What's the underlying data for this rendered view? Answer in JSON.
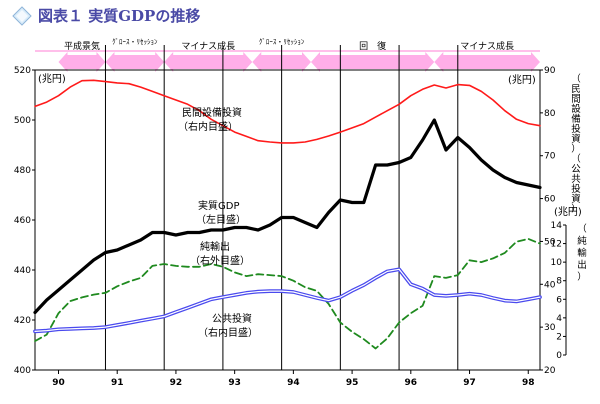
{
  "title": "図表１ 実質GDPの推移",
  "chart_data": {
    "type": "line",
    "title": "図表１ 実質GDPの推移",
    "phases": [
      {
        "label": "平成景気",
        "from": 90.0,
        "to": 90.8,
        "small": false
      },
      {
        "label": "ｸﾞﾛｰｽ・ﾘｾｯｼｮﾝ",
        "from": 90.8,
        "to": 91.8,
        "small": true
      },
      {
        "label": "マイナス成長",
        "from": 91.8,
        "to": 93.3,
        "small": false
      },
      {
        "label": "ｸﾞﾛｰｽ・ﾘｾｯｼｮﾝ",
        "from": 93.3,
        "to": 94.3,
        "small": true
      },
      {
        "label": "回　復",
        "from": 94.3,
        "to": 96.4,
        "small": false
      },
      {
        "label": "マイナス成長",
        "from": 96.4,
        "to": 98.2,
        "small": false
      }
    ],
    "x_ticks": [
      {
        "value": 90,
        "label": "90"
      },
      {
        "value": 91,
        "label": "91"
      },
      {
        "value": 92,
        "label": "92"
      },
      {
        "value": 93,
        "label": "93"
      },
      {
        "value": 94,
        "label": "94"
      },
      {
        "value": 95,
        "label": "95"
      },
      {
        "value": 96,
        "label": "96"
      },
      {
        "value": 97,
        "label": "97"
      },
      {
        "value": 98,
        "label": "98"
      }
    ],
    "xlim": [
      89.6,
      98.2
    ],
    "vlines": [
      90.8,
      91.8,
      92.8,
      93.8,
      94.8,
      95.8,
      96.8
    ],
    "y_left": {
      "unit": "(兆円)",
      "min": 400,
      "max": 520,
      "ticks": [
        400,
        420,
        440,
        460,
        480,
        500,
        520
      ]
    },
    "y_right_outer": {
      "unit": "(兆円)",
      "label": "（民間設備投資）（公共投資）",
      "min": 20,
      "max": 90,
      "ticks": [
        20,
        30,
        40,
        50,
        60,
        70,
        80,
        90
      ]
    },
    "y_right_inner": {
      "unit": "(兆円)",
      "label": "（純輸出）",
      "min": 0,
      "max": 14,
      "ticks": [
        0,
        2,
        4,
        6,
        8,
        10,
        12,
        14
      ]
    },
    "annotations": [
      {
        "text": "民間設備投資",
        "line2": "（右内目盛）"
      },
      {
        "text": "実質GDP",
        "line2": "（左目盛）"
      },
      {
        "text": "純輸出",
        "line2": "（右外目盛）"
      },
      {
        "text": "公共投資",
        "line2": "（右内目盛）"
      }
    ],
    "series": [
      {
        "key": "gdp",
        "axis": "left",
        "color": "#000000",
        "style": "solid",
        "width": 3.2,
        "x": [
          89.6,
          89.8,
          90.0,
          90.2,
          90.4,
          90.6,
          90.8,
          91.0,
          91.2,
          91.4,
          91.6,
          91.8,
          92.0,
          92.2,
          92.4,
          92.6,
          92.8,
          93.0,
          93.2,
          93.4,
          93.6,
          93.8,
          94.0,
          94.2,
          94.4,
          94.6,
          94.8,
          95.0,
          95.2,
          95.4,
          95.6,
          95.8,
          96.0,
          96.2,
          96.4,
          96.6,
          96.8,
          97.0,
          97.2,
          97.4,
          97.6,
          97.8,
          98.0,
          98.2
        ],
        "values": [
          423,
          428,
          432,
          436,
          440,
          444,
          447,
          448,
          450,
          452,
          455,
          455,
          454,
          455,
          455,
          456,
          456,
          457,
          457,
          456,
          458,
          461,
          461,
          459,
          457,
          463,
          468,
          467,
          467,
          482,
          482,
          483,
          485,
          492,
          500,
          488,
          493,
          489,
          484,
          480,
          477,
          475,
          474,
          473
        ]
      },
      {
        "key": "capex",
        "axis": "right",
        "color": "#ff1a1a",
        "style": "solid",
        "width": 1.6,
        "x": [
          89.6,
          89.8,
          90.0,
          90.2,
          90.4,
          90.6,
          90.8,
          91.0,
          91.2,
          91.4,
          91.6,
          91.8,
          92.0,
          92.2,
          92.4,
          92.6,
          92.8,
          93.0,
          93.2,
          93.4,
          93.6,
          93.8,
          94.0,
          94.2,
          94.4,
          94.6,
          94.8,
          95.0,
          95.2,
          95.4,
          95.6,
          95.8,
          96.0,
          96.2,
          96.4,
          96.6,
          96.8,
          97.0,
          97.2,
          97.4,
          97.6,
          97.8,
          98.0,
          98.2
        ],
        "values": [
          81.5,
          82.5,
          84,
          86,
          87.5,
          87.6,
          87.3,
          87,
          86.8,
          86,
          85,
          84,
          83,
          82,
          80.5,
          78.5,
          77,
          75.5,
          74.5,
          73.5,
          73.2,
          73.0,
          73.0,
          73.2,
          73.8,
          74.6,
          75.5,
          76.5,
          77.5,
          79,
          80.5,
          82,
          84,
          85.5,
          86.5,
          85.8,
          86.6,
          86.4,
          85,
          83,
          80.5,
          78.5,
          77.5,
          77
        ]
      },
      {
        "key": "netexports",
        "axis": "right_outer",
        "color": "#1f8a1f",
        "style": "dashed",
        "width": 1.8,
        "x": [
          89.6,
          89.8,
          90.0,
          90.2,
          90.4,
          90.6,
          90.8,
          91.0,
          91.2,
          91.4,
          91.6,
          91.8,
          92.0,
          92.2,
          92.4,
          92.6,
          92.8,
          93.0,
          93.2,
          93.4,
          93.6,
          93.8,
          94.0,
          94.2,
          94.4,
          94.6,
          94.8,
          95.0,
          95.2,
          95.4,
          95.6,
          95.8,
          96.0,
          96.2,
          96.4,
          96.6,
          96.8,
          97.0,
          97.2,
          97.4,
          97.6,
          97.8,
          98.0,
          98.2
        ],
        "values": [
          1.5,
          2.2,
          4.5,
          5.8,
          6.2,
          6.5,
          6.7,
          7.4,
          7.9,
          8.3,
          9.6,
          9.8,
          9.6,
          9.5,
          9.5,
          9.8,
          9.5,
          8.9,
          8.5,
          8.7,
          8.6,
          8.5,
          8.0,
          7.3,
          6.9,
          5.5,
          3.5,
          2.5,
          1.7,
          0.7,
          1.8,
          3.5,
          4.5,
          5.3,
          8.5,
          8.3,
          8.6,
          10.2,
          10.0,
          10.4,
          11.0,
          12.2,
          12.5,
          12.0
        ]
      },
      {
        "key": "public",
        "axis": "right",
        "color": "#4a4aee",
        "style": "double",
        "width": 1.5,
        "x": [
          89.6,
          89.8,
          90.0,
          90.2,
          90.4,
          90.6,
          90.8,
          91.0,
          91.2,
          91.4,
          91.6,
          91.8,
          92.0,
          92.2,
          92.4,
          92.6,
          92.8,
          93.0,
          93.2,
          93.4,
          93.6,
          93.8,
          94.0,
          94.2,
          94.4,
          94.6,
          94.8,
          95.0,
          95.2,
          95.4,
          95.6,
          95.8,
          96.0,
          96.2,
          96.4,
          96.6,
          96.8,
          97.0,
          97.2,
          97.4,
          97.6,
          97.8,
          98.0,
          98.2
        ],
        "values": [
          29,
          29.2,
          29.5,
          29.6,
          29.7,
          29.8,
          30,
          30.5,
          31,
          31.5,
          32,
          32.5,
          33.5,
          34.5,
          35.5,
          36.5,
          37,
          37.5,
          38,
          38.3,
          38.4,
          38.4,
          38.2,
          37.5,
          36.8,
          36.2,
          37,
          38.5,
          39.8,
          41.5,
          43,
          43.5,
          40,
          39,
          37.5,
          37.3,
          37.5,
          37.8,
          37.5,
          36.8,
          36.2,
          36,
          36.5,
          37
        ]
      }
    ]
  }
}
